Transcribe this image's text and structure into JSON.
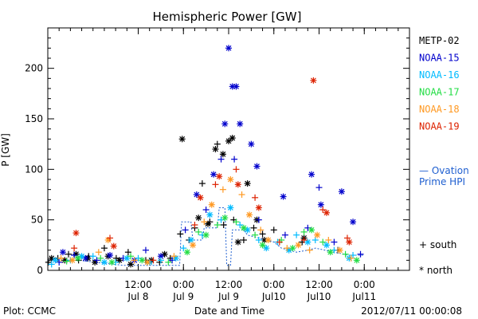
{
  "chart_data": {
    "type": "scatter",
    "title": "Hemispheric Power [GW]",
    "xlabel": "Date and Time",
    "ylabel": "P [GW]",
    "xlim": [
      "2012-07-07T12:00",
      "2012-07-11T12:00"
    ],
    "ylim": [
      0,
      240
    ],
    "y_ticks": [
      0,
      50,
      100,
      150,
      200
    ],
    "x_ticks": [
      {
        "t": "2012-07-08T12:00",
        "top": "12:00",
        "bottom": "Jul 8"
      },
      {
        "t": "2012-07-09T00:00",
        "top": "0:00",
        "bottom": "Jul 9"
      },
      {
        "t": "2012-07-09T12:00",
        "top": "12:00",
        "bottom": "Jul 9"
      },
      {
        "t": "2012-07-10T00:00",
        "top": "0:00",
        "bottom": "Jul10"
      },
      {
        "t": "2012-07-10T12:00",
        "top": "12:00",
        "bottom": "Jul10"
      },
      {
        "t": "2012-07-11T00:00",
        "top": "0:00",
        "bottom": "Jul11"
      }
    ],
    "legend_placement": "right",
    "series": [
      {
        "name": "METP-02",
        "color": "#000000",
        "south": [
          [
            "2012-07-07T12:10",
            8
          ],
          [
            "2012-07-07T14:40",
            12
          ],
          [
            "2012-07-07T17:30",
            16
          ],
          [
            "2012-07-07T20:10",
            10
          ],
          [
            "2012-07-07T22:50",
            14
          ],
          [
            "2012-07-08T03:00",
            22
          ],
          [
            "2012-07-08T06:10",
            12
          ],
          [
            "2012-07-08T09:20",
            18
          ],
          [
            "2012-07-08T14:00",
            10
          ],
          [
            "2012-07-08T17:40",
            8
          ],
          [
            "2012-07-08T20:30",
            12
          ],
          [
            "2012-07-08T23:10",
            36
          ],
          [
            "2012-07-09T01:30",
            30
          ],
          [
            "2012-07-09T03:00",
            42
          ],
          [
            "2012-07-09T05:00",
            86
          ],
          [
            "2012-07-09T07:00",
            48
          ],
          [
            "2012-07-09T09:00",
            125
          ],
          [
            "2012-07-09T10:40",
            45
          ],
          [
            "2012-07-09T13:20",
            50
          ],
          [
            "2012-07-09T16:00",
            30
          ],
          [
            "2012-07-09T18:40",
            42
          ],
          [
            "2012-07-09T21:00",
            36
          ],
          [
            "2012-07-10T00:00",
            40
          ],
          [
            "2012-07-10T07:30",
            28
          ],
          [
            "2012-07-10T17:00",
            20
          ]
        ],
        "north": [
          [
            "2012-07-07T13:00",
            12
          ],
          [
            "2012-07-07T16:30",
            10
          ],
          [
            "2012-07-07T19:30",
            16
          ],
          [
            "2012-07-07T22:40",
            12
          ],
          [
            "2012-07-08T00:30",
            8
          ],
          [
            "2012-07-08T04:00",
            14
          ],
          [
            "2012-07-08T07:00",
            10
          ],
          [
            "2012-07-08T10:00",
            6
          ],
          [
            "2012-07-08T15:30",
            10
          ],
          [
            "2012-07-08T19:00",
            16
          ],
          [
            "2012-07-08T23:40",
            130
          ],
          [
            "2012-07-09T04:00",
            52
          ],
          [
            "2012-07-09T06:30",
            46
          ],
          [
            "2012-07-09T08:30",
            120
          ],
          [
            "2012-07-09T10:30",
            115
          ],
          [
            "2012-07-09T12:00",
            128
          ],
          [
            "2012-07-09T13:00",
            131
          ],
          [
            "2012-07-09T14:30",
            28
          ],
          [
            "2012-07-09T17:00",
            86
          ],
          [
            "2012-07-09T19:30",
            50
          ],
          [
            "2012-07-09T21:30",
            30
          ],
          [
            "2012-07-10T08:00",
            32
          ]
        ]
      },
      {
        "name": "NOAA-15",
        "color": "#0000cc",
        "south": [
          [
            "2012-07-07T15:00",
            8
          ],
          [
            "2012-07-07T19:00",
            15
          ],
          [
            "2012-07-08T01:00",
            10
          ],
          [
            "2012-07-08T08:00",
            12
          ],
          [
            "2012-07-08T14:00",
            20
          ],
          [
            "2012-07-08T21:00",
            10
          ],
          [
            "2012-07-09T00:30",
            40
          ],
          [
            "2012-07-09T06:00",
            60
          ],
          [
            "2012-07-09T10:00",
            110
          ],
          [
            "2012-07-09T13:30",
            110
          ],
          [
            "2012-07-09T20:00",
            50
          ],
          [
            "2012-07-10T03:00",
            35
          ],
          [
            "2012-07-10T09:00",
            42
          ],
          [
            "2012-07-10T12:00",
            82
          ],
          [
            "2012-07-10T16:00",
            28
          ],
          [
            "2012-07-10T23:00",
            16
          ]
        ],
        "north": [
          [
            "2012-07-07T16:00",
            18
          ],
          [
            "2012-07-07T22:00",
            12
          ],
          [
            "2012-07-08T04:30",
            15
          ],
          [
            "2012-07-08T11:00",
            10
          ],
          [
            "2012-07-08T18:00",
            14
          ],
          [
            "2012-07-09T03:30",
            75
          ],
          [
            "2012-07-09T08:00",
            95
          ],
          [
            "2012-07-09T11:00",
            145
          ],
          [
            "2012-07-09T12:00",
            220
          ],
          [
            "2012-07-09T13:00",
            182
          ],
          [
            "2012-07-09T14:00",
            182
          ],
          [
            "2012-07-09T15:00",
            145
          ],
          [
            "2012-07-09T18:00",
            125
          ],
          [
            "2012-07-09T19:30",
            103
          ],
          [
            "2012-07-10T02:30",
            73
          ],
          [
            "2012-07-10T10:00",
            95
          ],
          [
            "2012-07-10T12:30",
            65
          ],
          [
            "2012-07-10T18:00",
            78
          ],
          [
            "2012-07-10T21:00",
            48
          ]
        ]
      },
      {
        "name": "NOAA-16",
        "color": "#00bbff",
        "south": [
          [
            "2012-07-07T13:00",
            6
          ],
          [
            "2012-07-07T18:00",
            10
          ],
          [
            "2012-07-08T00:00",
            14
          ],
          [
            "2012-07-08T06:00",
            8
          ],
          [
            "2012-07-08T12:00",
            12
          ],
          [
            "2012-07-08T18:00",
            10
          ],
          [
            "2012-07-09T00:00",
            22
          ],
          [
            "2012-07-09T05:00",
            35
          ],
          [
            "2012-07-09T10:00",
            50
          ],
          [
            "2012-07-09T15:00",
            45
          ],
          [
            "2012-07-09T20:00",
            30
          ],
          [
            "2012-07-10T01:00",
            28
          ],
          [
            "2012-07-10T06:00",
            35
          ],
          [
            "2012-07-10T11:00",
            30
          ],
          [
            "2012-07-10T16:00",
            20
          ],
          [
            "2012-07-10T21:00",
            15
          ]
        ],
        "north": [
          [
            "2012-07-07T14:00",
            10
          ],
          [
            "2012-07-07T21:00",
            14
          ],
          [
            "2012-07-08T03:00",
            8
          ],
          [
            "2012-07-08T09:00",
            12
          ],
          [
            "2012-07-08T15:00",
            8
          ],
          [
            "2012-07-08T22:00",
            12
          ],
          [
            "2012-07-09T02:00",
            30
          ],
          [
            "2012-07-09T07:00",
            55
          ],
          [
            "2012-07-09T12:30",
            62
          ],
          [
            "2012-07-09T17:00",
            40
          ],
          [
            "2012-07-09T22:00",
            22
          ],
          [
            "2012-07-10T04:00",
            20
          ],
          [
            "2012-07-10T09:00",
            28
          ],
          [
            "2012-07-10T14:00",
            25
          ],
          [
            "2012-07-10T20:00",
            12
          ]
        ]
      },
      {
        "name": "NOAA-17",
        "color": "#22dd44",
        "south": [
          [
            "2012-07-07T17:00",
            9
          ],
          [
            "2012-07-08T02:00",
            12
          ],
          [
            "2012-07-08T10:00",
            14
          ],
          [
            "2012-07-08T20:00",
            8
          ],
          [
            "2012-07-09T04:00",
            38
          ],
          [
            "2012-07-09T09:00",
            45
          ],
          [
            "2012-07-09T14:00",
            48
          ],
          [
            "2012-07-09T19:00",
            35
          ],
          [
            "2012-07-10T02:00",
            30
          ],
          [
            "2012-07-10T08:00",
            38
          ],
          [
            "2012-07-10T13:00",
            28
          ],
          [
            "2012-07-10T19:00",
            16
          ]
        ],
        "north": [
          [
            "2012-07-07T20:00",
            12
          ],
          [
            "2012-07-08T05:00",
            8
          ],
          [
            "2012-07-08T13:00",
            10
          ],
          [
            "2012-07-09T01:00",
            18
          ],
          [
            "2012-07-09T06:00",
            35
          ],
          [
            "2012-07-09T11:00",
            52
          ],
          [
            "2012-07-09T16:00",
            42
          ],
          [
            "2012-07-09T21:00",
            25
          ],
          [
            "2012-07-10T05:00",
            22
          ],
          [
            "2012-07-10T10:00",
            40
          ],
          [
            "2012-07-10T15:00",
            18
          ],
          [
            "2012-07-10T22:00",
            10
          ]
        ]
      },
      {
        "name": "NOAA-18",
        "color": "#ff9922",
        "south": [
          [
            "2012-07-07T15:30",
            12
          ],
          [
            "2012-07-08T01:30",
            18
          ],
          [
            "2012-07-08T11:00",
            10
          ],
          [
            "2012-07-08T21:30",
            14
          ],
          [
            "2012-07-09T05:30",
            48
          ],
          [
            "2012-07-09T10:30",
            80
          ],
          [
            "2012-07-09T15:30",
            75
          ],
          [
            "2012-07-09T20:30",
            40
          ],
          [
            "2012-07-10T03:30",
            22
          ],
          [
            "2012-07-10T09:30",
            20
          ],
          [
            "2012-07-10T14:30",
            30
          ],
          [
            "2012-07-10T20:30",
            12
          ]
        ],
        "north": [
          [
            "2012-07-07T18:30",
            10
          ],
          [
            "2012-07-08T04:00",
            30
          ],
          [
            "2012-07-08T14:30",
            8
          ],
          [
            "2012-07-09T02:30",
            25
          ],
          [
            "2012-07-09T07:30",
            65
          ],
          [
            "2012-07-09T12:30",
            90
          ],
          [
            "2012-07-09T17:30",
            55
          ],
          [
            "2012-07-09T22:30",
            30
          ],
          [
            "2012-07-10T06:30",
            25
          ],
          [
            "2012-07-10T11:30",
            35
          ],
          [
            "2012-07-10T17:30",
            20
          ]
        ]
      },
      {
        "name": "NOAA-19",
        "color": "#dd2200",
        "south": [
          [
            "2012-07-07T19:00",
            22
          ],
          [
            "2012-07-08T04:30",
            32
          ],
          [
            "2012-07-08T16:00",
            10
          ],
          [
            "2012-07-09T03:00",
            45
          ],
          [
            "2012-07-09T08:30",
            85
          ],
          [
            "2012-07-09T14:00",
            100
          ],
          [
            "2012-07-09T19:00",
            72
          ],
          [
            "2012-07-10T01:30",
            28
          ],
          [
            "2012-07-10T08:00",
            30
          ],
          [
            "2012-07-10T13:00",
            60
          ],
          [
            "2012-07-10T19:30",
            32
          ]
        ],
        "north": [
          [
            "2012-07-07T19:30",
            37
          ],
          [
            "2012-07-08T05:30",
            24
          ],
          [
            "2012-07-09T04:30",
            72
          ],
          [
            "2012-07-09T09:30",
            93
          ],
          [
            "2012-07-09T14:30",
            85
          ],
          [
            "2012-07-09T20:00",
            62
          ],
          [
            "2012-07-10T10:30",
            188
          ],
          [
            "2012-07-10T14:00",
            57
          ],
          [
            "2012-07-10T20:00",
            28
          ]
        ]
      }
    ],
    "ovation": {
      "name": "— Ovation Prime HPI",
      "color": "#1f5fd0",
      "values": [
        [
          "2012-07-07T12:00",
          10
        ],
        [
          "2012-07-07T20:00",
          10
        ],
        [
          "2012-07-08T08:00",
          5
        ],
        [
          "2012-07-08T23:00",
          5
        ],
        [
          "2012-07-08T23:30",
          48
        ],
        [
          "2012-07-09T02:00",
          48
        ],
        [
          "2012-07-09T02:30",
          30
        ],
        [
          "2012-07-09T05:00",
          30
        ],
        [
          "2012-07-09T05:30",
          42
        ],
        [
          "2012-07-09T09:00",
          42
        ],
        [
          "2012-07-09T09:30",
          62
        ],
        [
          "2012-07-09T11:00",
          62
        ],
        [
          "2012-07-09T11:30",
          5
        ],
        [
          "2012-07-09T12:30",
          5
        ],
        [
          "2012-07-09T13:00",
          40
        ],
        [
          "2012-07-09T16:00",
          40
        ],
        [
          "2012-07-09T17:00",
          35
        ],
        [
          "2012-07-10T00:00",
          28
        ],
        [
          "2012-07-10T02:00",
          22
        ],
        [
          "2012-07-10T06:00",
          18
        ],
        [
          "2012-07-10T09:00",
          20
        ],
        [
          "2012-07-10T11:00",
          22
        ],
        [
          "2012-07-10T16:00",
          18
        ],
        [
          "2012-07-10T20:00",
          15
        ],
        [
          "2012-07-11T00:00",
          15
        ]
      ]
    },
    "legend_text": {
      "south": "+ south",
      "north": "* north"
    },
    "footer": {
      "left": "Plot: CCMC",
      "center": "Date and Time",
      "right": "2012/07/11 00:00:08"
    }
  }
}
